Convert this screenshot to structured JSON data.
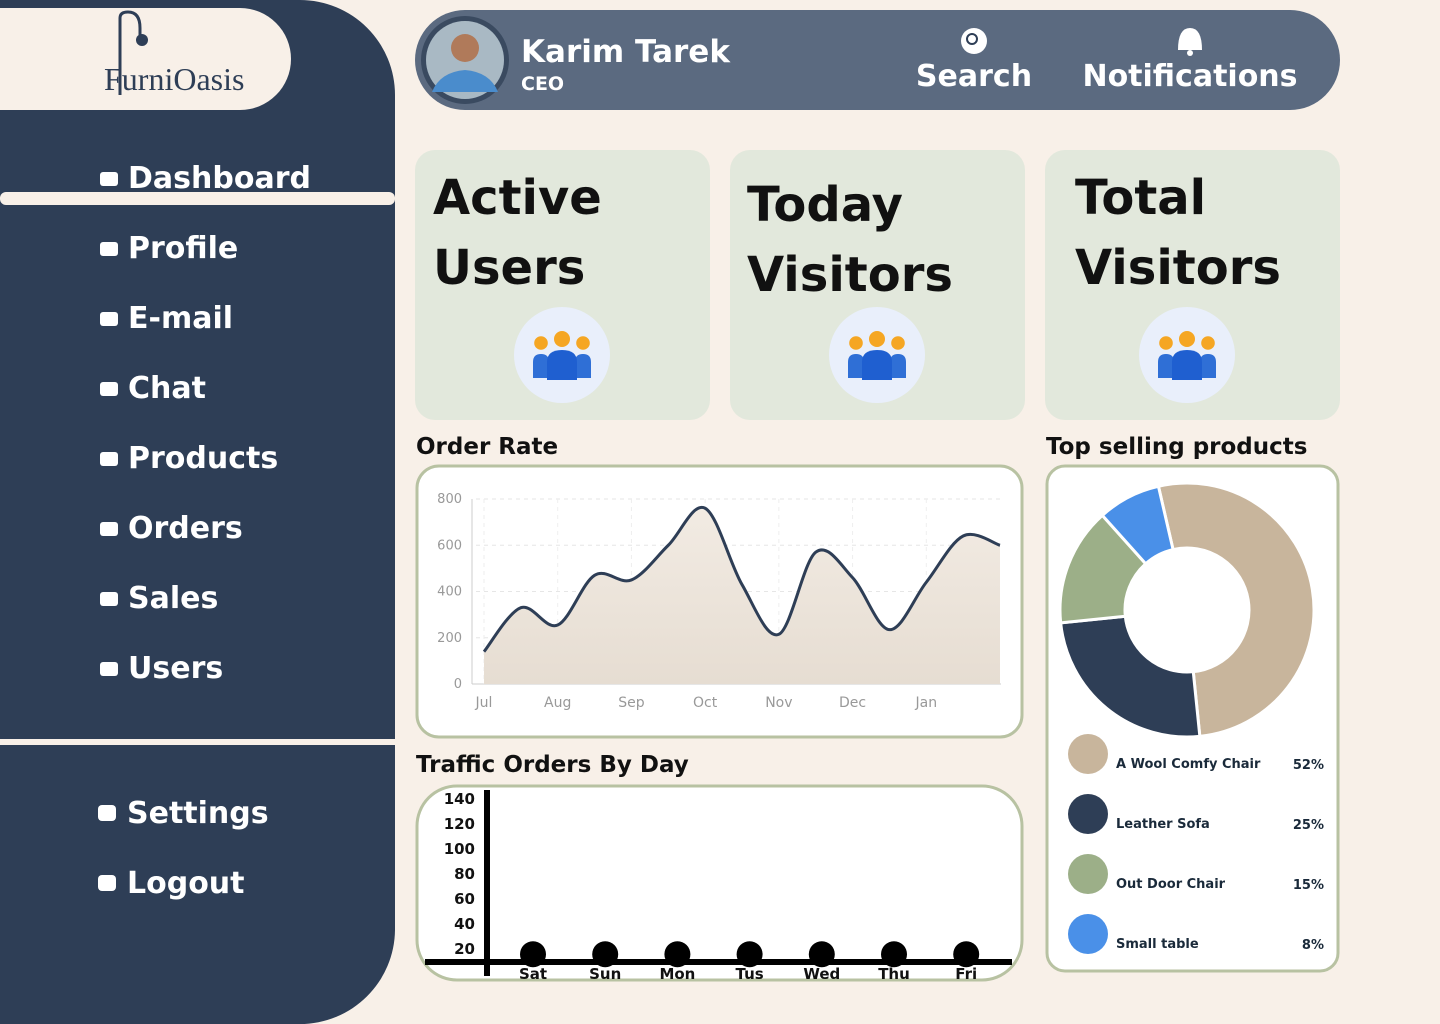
{
  "logo": "FurniOasis",
  "header": {
    "name": "Karim Tarek",
    "role": "CEO",
    "search": "Search",
    "notifications": "Notifications"
  },
  "sidebar": {
    "nav": [
      "Dashboard",
      "Profile",
      "E-mail",
      "Chat",
      "Products",
      "Orders",
      "Sales",
      "Users"
    ],
    "bottom": [
      "Settings",
      "Logout"
    ]
  },
  "cards": [
    "Active Users",
    "Today Visitors",
    "Total Visitors"
  ],
  "chart_data": [
    {
      "type": "line",
      "title": "Order Rate",
      "categories": [
        "Jul",
        null,
        "Aug",
        null,
        "Sep",
        null,
        "Oct",
        null,
        "Nov",
        null,
        "Dec",
        null,
        "Jan",
        null,
        null
      ],
      "values": [
        140,
        330,
        255,
        470,
        450,
        600,
        760,
        430,
        215,
        570,
        460,
        235,
        440,
        640,
        600
      ],
      "color": "#2e3e56",
      "ylim": [
        0,
        800
      ],
      "yticks": [
        0,
        200,
        400,
        600,
        800
      ],
      "grid": true
    },
    {
      "type": "dot",
      "title": "Traffic Orders By Day",
      "categories": [
        "Sat",
        "Sun",
        "Mon",
        "Tus",
        "Wed",
        "Thu",
        "Fri"
      ],
      "values": [
        15,
        15,
        15,
        15,
        15,
        15,
        15
      ],
      "color": "#000000",
      "ylim": [
        0,
        140
      ],
      "yticks": [
        20,
        40,
        60,
        80,
        100,
        120,
        140
      ]
    },
    {
      "type": "donut",
      "title": "Top selling products",
      "categories": [
        "A Wool Comfy Chair",
        "Leather Sofa",
        "Out Door Chair",
        "Small table"
      ],
      "values": [
        52,
        25,
        15,
        8
      ],
      "value_labels": [
        "52%",
        "25%",
        "15%",
        "8%"
      ],
      "colors": [
        "#c8b59c",
        "#2e3e56",
        "#9caf88",
        "#4a90e8"
      ]
    }
  ]
}
